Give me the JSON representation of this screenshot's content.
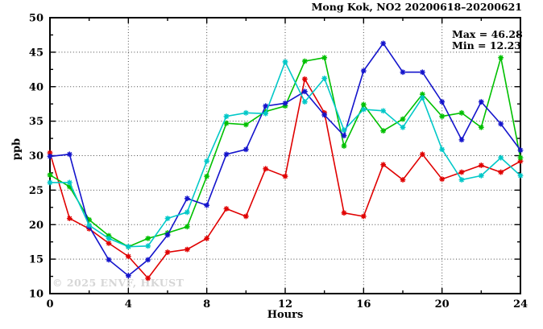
{
  "chart_data": {
    "type": "line",
    "title": "Mong Kok, NO2 20200618–20200621",
    "xlabel": "Hours",
    "ylabel": "ppb",
    "xlim": [
      0,
      24
    ],
    "ylim": [
      10,
      50
    ],
    "x_major_ticks": [
      0,
      4,
      8,
      12,
      16,
      20,
      24
    ],
    "x_minor_ticks": [
      2,
      6,
      10,
      14,
      18,
      22
    ],
    "y_major_ticks": [
      10,
      15,
      20,
      25,
      30,
      35,
      40,
      45,
      50
    ],
    "y_minor_ticks": [
      12.5,
      17.5,
      22.5,
      27.5,
      32.5,
      37.5,
      42.5,
      47.5
    ],
    "grid": {
      "horizontal_at": [
        15,
        20,
        25,
        30,
        35,
        40,
        45
      ],
      "vertical_at": [
        4,
        8,
        12,
        16,
        20
      ],
      "style": "dotted"
    },
    "legend_position": "none",
    "annotations": {
      "max_label": "Max = 46.28",
      "min_label": "Min = 12.23"
    },
    "watermark": "© 2025  ENVF, HKUST",
    "x": [
      0,
      1,
      2,
      3,
      4,
      5,
      6,
      7,
      8,
      9,
      10,
      11,
      12,
      13,
      14,
      15,
      16,
      17,
      18,
      19,
      20,
      21,
      22,
      23,
      24
    ],
    "series": [
      {
        "name": "red-line",
        "color": "#e00000",
        "values": [
          30.4,
          20.9,
          19.4,
          17.3,
          15.4,
          12.23,
          16.0,
          16.4,
          18.0,
          22.3,
          21.2,
          28.1,
          27.0,
          41.1,
          36.2,
          21.7,
          21.2,
          28.7,
          26.5,
          30.2,
          26.6,
          27.6,
          28.6,
          27.6,
          29.2
        ]
      },
      {
        "name": "green-line",
        "color": "#00c000",
        "values": [
          27.2,
          25.5,
          20.7,
          18.4,
          16.8,
          18.0,
          18.8,
          19.7,
          27.0,
          34.7,
          34.5,
          36.4,
          37.2,
          43.7,
          44.2,
          31.4,
          37.4,
          33.6,
          35.3,
          38.9,
          35.7,
          36.2,
          34.1,
          44.2,
          29.7
        ]
      },
      {
        "name": "blue-line",
        "color": "#1414cc",
        "values": [
          29.9,
          30.2,
          19.7,
          14.9,
          12.6,
          14.9,
          18.5,
          23.8,
          22.8,
          30.2,
          30.9,
          37.2,
          37.6,
          39.3,
          35.9,
          32.9,
          42.3,
          46.28,
          42.1,
          42.1,
          37.8,
          32.3,
          37.8,
          34.6,
          30.8
        ]
      },
      {
        "name": "cyan-line",
        "color": "#00c8c8",
        "values": [
          26.1,
          26.1,
          19.9,
          18.0,
          16.8,
          16.9,
          20.9,
          21.8,
          29.2,
          35.7,
          36.2,
          36.1,
          43.6,
          37.8,
          41.2,
          33.7,
          36.7,
          36.5,
          34.1,
          38.4,
          30.9,
          26.5,
          27.1,
          29.7,
          27.1
        ]
      }
    ]
  }
}
